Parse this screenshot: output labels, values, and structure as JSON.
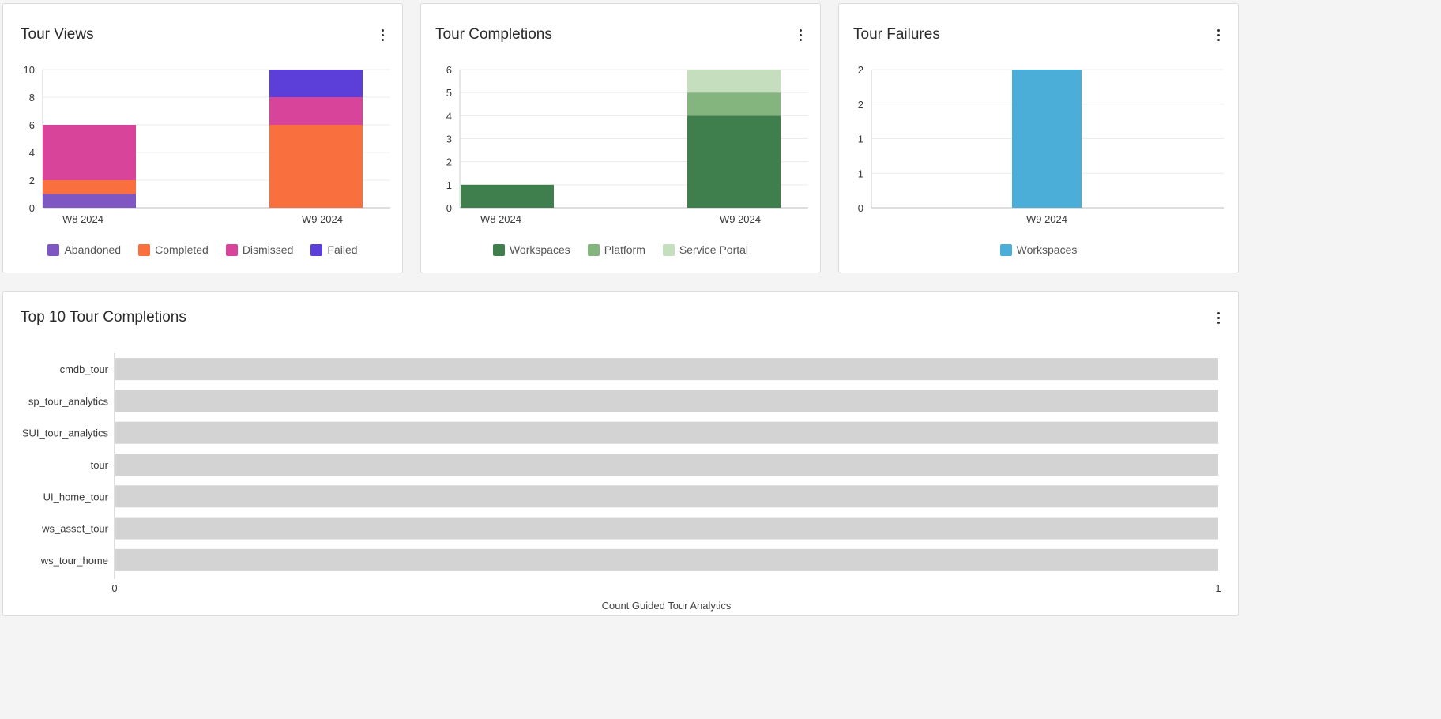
{
  "cards": {
    "tour_views": {
      "title": "Tour Views",
      "menu_icon": "more-vertical-icon",
      "chart_data": {
        "type": "bar",
        "stacked": true,
        "categories": [
          "W8 2024",
          "W9 2024"
        ],
        "ylim": [
          0,
          10
        ],
        "yticks": [
          0,
          2,
          4,
          6,
          8,
          10
        ],
        "series": [
          {
            "name": "Abandoned",
            "color": "#7e57c2",
            "values": [
              1,
              0
            ]
          },
          {
            "name": "Completed",
            "color": "#f9703e",
            "values": [
              1,
              6
            ]
          },
          {
            "name": "Dismissed",
            "color": "#d8449a",
            "values": [
              4,
              2
            ]
          },
          {
            "name": "Failed",
            "color": "#5c3fd8",
            "values": [
              0,
              2
            ]
          }
        ],
        "legend_position": "bottom",
        "grid": true
      }
    },
    "tour_completions": {
      "title": "Tour Completions",
      "menu_icon": "more-vertical-icon",
      "chart_data": {
        "type": "bar",
        "stacked": true,
        "categories": [
          "W8 2024",
          "W9 2024"
        ],
        "ylim": [
          0,
          6
        ],
        "yticks": [
          0,
          1,
          2,
          3,
          4,
          5,
          6
        ],
        "series": [
          {
            "name": "Workspaces",
            "color": "#3f7f4e",
            "values": [
              1,
              4
            ]
          },
          {
            "name": "Platform",
            "color": "#85b57f",
            "values": [
              0,
              1
            ]
          },
          {
            "name": "Service Portal",
            "color": "#c5dfbe",
            "values": [
              0,
              1
            ]
          }
        ],
        "legend_position": "bottom",
        "grid": true
      }
    },
    "tour_failures": {
      "title": "Tour Failures",
      "menu_icon": "more-vertical-icon",
      "chart_data": {
        "type": "bar",
        "stacked": true,
        "categories": [
          "W9 2024"
        ],
        "ylim": [
          0,
          2
        ],
        "ytick_labels": [
          "0",
          "1",
          "1",
          "2",
          "2"
        ],
        "series": [
          {
            "name": "Workspaces",
            "color": "#4aaed9",
            "values": [
              2
            ]
          }
        ],
        "legend_position": "bottom",
        "grid": true
      }
    },
    "top10": {
      "title": "Top 10 Tour Completions",
      "menu_icon": "more-vertical-icon",
      "chart_data": {
        "type": "bar",
        "orientation": "horizontal",
        "categories": [
          "cmdb_tour",
          "sp_tour_analytics",
          "SUI_tour_analytics",
          "tour",
          "UI_home_tour",
          "ws_asset_tour",
          "ws_tour_home"
        ],
        "values": [
          1,
          1,
          1,
          1,
          1,
          1,
          1
        ],
        "color": "#d3d3d3",
        "xlim": [
          0,
          1
        ],
        "xticks": [
          0,
          1
        ],
        "xlabel": "Count Guided Tour Analytics"
      }
    }
  }
}
